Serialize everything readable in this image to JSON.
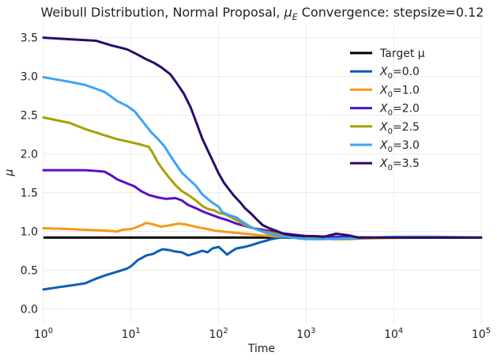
{
  "chart_data": {
    "type": "line",
    "title_prefix": "Weibull Distribution, Normal Proposal, ",
    "title_mu": "μ",
    "title_sub": "E",
    "title_suffix": " Convergence: stepsize=0.12",
    "xlabel": "Time",
    "ylabel": "μ",
    "xscale": "log",
    "xlim": [
      1,
      100000
    ],
    "ylim": [
      -0.18,
      3.68
    ],
    "grid": true,
    "legend_position": "upper-right",
    "x_ticks": [
      {
        "value": 1,
        "base": "10",
        "exp": "0"
      },
      {
        "value": 10,
        "base": "10",
        "exp": "1"
      },
      {
        "value": 100,
        "base": "10",
        "exp": "2"
      },
      {
        "value": 1000,
        "base": "10",
        "exp": "3"
      },
      {
        "value": 10000,
        "base": "10",
        "exp": "4"
      },
      {
        "value": 100000,
        "base": "10",
        "exp": "5"
      }
    ],
    "y_ticks": [
      {
        "value": 0.0,
        "label": "0.0"
      },
      {
        "value": 0.5,
        "label": "0.5"
      },
      {
        "value": 1.0,
        "label": "1.0"
      },
      {
        "value": 1.5,
        "label": "1.5"
      },
      {
        "value": 2.0,
        "label": "2.0"
      },
      {
        "value": 2.5,
        "label": "2.5"
      },
      {
        "value": 3.0,
        "label": "3.0"
      },
      {
        "value": 3.5,
        "label": "3.5"
      }
    ],
    "target": {
      "name": "Target μ",
      "value": 0.92,
      "color": "#000000"
    },
    "series": [
      {
        "name_var": "X",
        "name_sub": "0",
        "name_val": "=0.0",
        "color": "#0d5db5",
        "points": [
          [
            1,
            0.25
          ],
          [
            1.5,
            0.28
          ],
          [
            2,
            0.3
          ],
          [
            3,
            0.33
          ],
          [
            4,
            0.39
          ],
          [
            5,
            0.43
          ],
          [
            7,
            0.48
          ],
          [
            9,
            0.52
          ],
          [
            10,
            0.55
          ],
          [
            12,
            0.63
          ],
          [
            15,
            0.69
          ],
          [
            18,
            0.71
          ],
          [
            20,
            0.74
          ],
          [
            23,
            0.77
          ],
          [
            27,
            0.76
          ],
          [
            32,
            0.74
          ],
          [
            38,
            0.73
          ],
          [
            45,
            0.69
          ],
          [
            55,
            0.72
          ],
          [
            65,
            0.75
          ],
          [
            75,
            0.73
          ],
          [
            85,
            0.78
          ],
          [
            100,
            0.8
          ],
          [
            110,
            0.76
          ],
          [
            125,
            0.7
          ],
          [
            140,
            0.74
          ],
          [
            160,
            0.78
          ],
          [
            200,
            0.8
          ],
          [
            250,
            0.83
          ],
          [
            300,
            0.86
          ],
          [
            350,
            0.88
          ],
          [
            400,
            0.9
          ],
          [
            500,
            0.92
          ],
          [
            700,
            0.93
          ],
          [
            1000,
            0.91
          ],
          [
            1500,
            0.92
          ],
          [
            3000,
            0.91
          ],
          [
            10000,
            0.92
          ],
          [
            30000,
            0.92
          ],
          [
            100000,
            0.92
          ]
        ]
      },
      {
        "name_var": "X",
        "name_sub": "0",
        "name_val": "=1.0",
        "color": "#f59a14",
        "points": [
          [
            1,
            1.04
          ],
          [
            2,
            1.03
          ],
          [
            3,
            1.02
          ],
          [
            5,
            1.01
          ],
          [
            7,
            1.0
          ],
          [
            8,
            1.02
          ],
          [
            10,
            1.03
          ],
          [
            12,
            1.06
          ],
          [
            15,
            1.11
          ],
          [
            18,
            1.09
          ],
          [
            22,
            1.06
          ],
          [
            28,
            1.08
          ],
          [
            35,
            1.1
          ],
          [
            42,
            1.09
          ],
          [
            50,
            1.07
          ],
          [
            60,
            1.05
          ],
          [
            75,
            1.03
          ],
          [
            90,
            1.01
          ],
          [
            110,
            1.0
          ],
          [
            130,
            0.99
          ],
          [
            160,
            0.98
          ],
          [
            200,
            0.97
          ],
          [
            250,
            0.96
          ],
          [
            300,
            0.95
          ],
          [
            400,
            0.94
          ],
          [
            600,
            0.93
          ],
          [
            1000,
            0.92
          ],
          [
            2000,
            0.91
          ],
          [
            5000,
            0.91
          ],
          [
            20000,
            0.92
          ],
          [
            100000,
            0.92
          ]
        ]
      },
      {
        "name_var": "X",
        "name_sub": "0",
        "name_val": "=2.0",
        "color": "#5a0fc4",
        "points": [
          [
            1,
            1.79
          ],
          [
            2,
            1.79
          ],
          [
            3,
            1.79
          ],
          [
            4,
            1.78
          ],
          [
            5,
            1.77
          ],
          [
            6,
            1.72
          ],
          [
            7,
            1.67
          ],
          [
            9,
            1.62
          ],
          [
            11,
            1.58
          ],
          [
            13,
            1.52
          ],
          [
            16,
            1.47
          ],
          [
            20,
            1.44
          ],
          [
            25,
            1.42
          ],
          [
            32,
            1.43
          ],
          [
            38,
            1.4
          ],
          [
            45,
            1.34
          ],
          [
            55,
            1.3
          ],
          [
            65,
            1.26
          ],
          [
            80,
            1.22
          ],
          [
            100,
            1.18
          ],
          [
            130,
            1.14
          ],
          [
            160,
            1.1
          ],
          [
            200,
            1.07
          ],
          [
            250,
            1.04
          ],
          [
            320,
            1.02
          ],
          [
            400,
            1.0
          ],
          [
            500,
            0.98
          ],
          [
            700,
            0.96
          ],
          [
            1000,
            0.94
          ],
          [
            2000,
            0.93
          ],
          [
            5000,
            0.92
          ],
          [
            20000,
            0.92
          ],
          [
            100000,
            0.92
          ]
        ]
      },
      {
        "name_var": "X",
        "name_sub": "0",
        "name_val": "=2.5",
        "color": "#a8a000",
        "points": [
          [
            1,
            2.47
          ],
          [
            2,
            2.4
          ],
          [
            3,
            2.32
          ],
          [
            5,
            2.24
          ],
          [
            7,
            2.19
          ],
          [
            10,
            2.15
          ],
          [
            13,
            2.12
          ],
          [
            16,
            2.09
          ],
          [
            18,
            2.0
          ],
          [
            20,
            1.9
          ],
          [
            23,
            1.8
          ],
          [
            27,
            1.7
          ],
          [
            32,
            1.6
          ],
          [
            38,
            1.52
          ],
          [
            45,
            1.47
          ],
          [
            55,
            1.4
          ],
          [
            65,
            1.33
          ],
          [
            75,
            1.29
          ],
          [
            90,
            1.27
          ],
          [
            100,
            1.24
          ],
          [
            120,
            1.22
          ],
          [
            140,
            1.18
          ],
          [
            170,
            1.13
          ],
          [
            200,
            1.08
          ],
          [
            250,
            1.04
          ],
          [
            300,
            1.01
          ],
          [
            400,
            0.98
          ],
          [
            500,
            0.96
          ],
          [
            700,
            0.94
          ],
          [
            1000,
            0.92
          ],
          [
            1500,
            0.91
          ],
          [
            2000,
            0.9
          ],
          [
            3000,
            0.9
          ],
          [
            5000,
            0.91
          ],
          [
            10000,
            0.92
          ],
          [
            100000,
            0.92
          ]
        ]
      },
      {
        "name_var": "X",
        "name_sub": "0",
        "name_val": "=3.0",
        "color": "#3da3f5",
        "points": [
          [
            1,
            2.99
          ],
          [
            2,
            2.93
          ],
          [
            3,
            2.89
          ],
          [
            5,
            2.8
          ],
          [
            7,
            2.68
          ],
          [
            9,
            2.62
          ],
          [
            11,
            2.55
          ],
          [
            14,
            2.4
          ],
          [
            17,
            2.28
          ],
          [
            20,
            2.2
          ],
          [
            24,
            2.1
          ],
          [
            28,
            1.98
          ],
          [
            33,
            1.86
          ],
          [
            38,
            1.76
          ],
          [
            45,
            1.68
          ],
          [
            55,
            1.59
          ],
          [
            65,
            1.48
          ],
          [
            75,
            1.42
          ],
          [
            85,
            1.37
          ],
          [
            100,
            1.32
          ],
          [
            110,
            1.25
          ],
          [
            125,
            1.22
          ],
          [
            140,
            1.2
          ],
          [
            160,
            1.18
          ],
          [
            190,
            1.12
          ],
          [
            230,
            1.06
          ],
          [
            280,
            1.02
          ],
          [
            350,
            0.98
          ],
          [
            450,
            0.95
          ],
          [
            600,
            0.93
          ],
          [
            800,
            0.91
          ],
          [
            1000,
            0.9
          ],
          [
            1500,
            0.9
          ],
          [
            3000,
            0.91
          ],
          [
            10000,
            0.93
          ],
          [
            30000,
            0.93
          ],
          [
            100000,
            0.92
          ]
        ]
      },
      {
        "name_var": "X",
        "name_sub": "0",
        "name_val": "=3.5",
        "color": "#2b0a6b",
        "points": [
          [
            1,
            3.5
          ],
          [
            2,
            3.48
          ],
          [
            4,
            3.46
          ],
          [
            6,
            3.4
          ],
          [
            9,
            3.35
          ],
          [
            12,
            3.28
          ],
          [
            15,
            3.22
          ],
          [
            18,
            3.18
          ],
          [
            22,
            3.12
          ],
          [
            28,
            3.03
          ],
          [
            33,
            2.92
          ],
          [
            40,
            2.78
          ],
          [
            48,
            2.6
          ],
          [
            56,
            2.4
          ],
          [
            65,
            2.2
          ],
          [
            75,
            2.05
          ],
          [
            85,
            1.92
          ],
          [
            100,
            1.75
          ],
          [
            115,
            1.63
          ],
          [
            130,
            1.55
          ],
          [
            150,
            1.46
          ],
          [
            175,
            1.38
          ],
          [
            200,
            1.3
          ],
          [
            230,
            1.24
          ],
          [
            270,
            1.16
          ],
          [
            320,
            1.08
          ],
          [
            380,
            1.04
          ],
          [
            450,
            1.01
          ],
          [
            550,
            0.97
          ],
          [
            700,
            0.95
          ],
          [
            900,
            0.94
          ],
          [
            1200,
            0.94
          ],
          [
            1600,
            0.93
          ],
          [
            2200,
            0.97
          ],
          [
            3000,
            0.95
          ],
          [
            4000,
            0.92
          ],
          [
            7000,
            0.92
          ],
          [
            20000,
            0.92
          ],
          [
            100000,
            0.92
          ]
        ]
      }
    ]
  }
}
